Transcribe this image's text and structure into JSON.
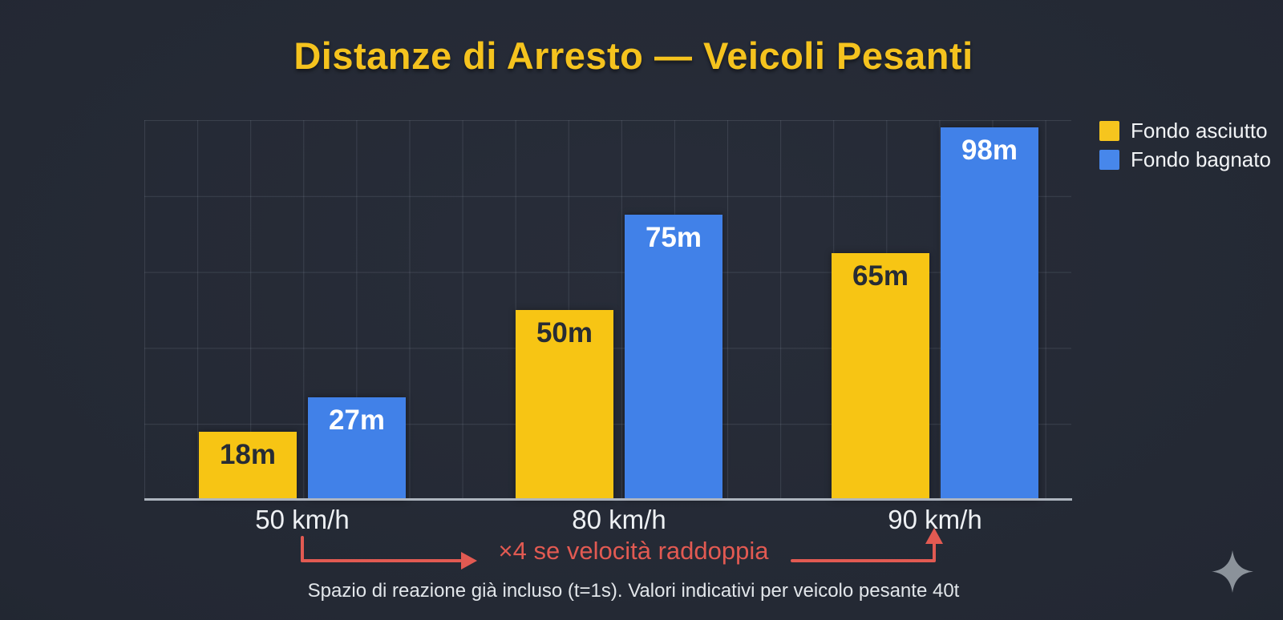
{
  "title": "Distanze di Arresto — Veicoli Pesanti",
  "legend": [
    {
      "label": "Fondo asciutto",
      "color": "#F6C51E",
      "icon": "dry-surface-swatch"
    },
    {
      "label": "Fondo bagnato",
      "color": "#4787EB",
      "icon": "wet-surface-swatch"
    }
  ],
  "chart_data": {
    "type": "bar",
    "title": "Distanze di Arresto — Veicoli Pesanti",
    "categories": [
      "50 km/h",
      "80 km/h",
      "90 km/h"
    ],
    "series": [
      {
        "name": "Fondo asciutto",
        "values": [
          18,
          50,
          65
        ],
        "value_labels": [
          "18m",
          "50m",
          "65m"
        ],
        "color": "#F7C514",
        "value_label_color": "#272c35"
      },
      {
        "name": "Fondo bagnato",
        "values": [
          27,
          75,
          98
        ],
        "value_labels": [
          "27m",
          "75m",
          "98m"
        ],
        "color": "#4181E8",
        "value_label_color": "#ffffff"
      }
    ],
    "unit": "m",
    "xlabel": "",
    "ylabel": "",
    "ylim": [
      0,
      100
    ],
    "grid": true,
    "legend_position": "top-right"
  },
  "annotation": {
    "text": "×4 se velocità raddoppia",
    "color": "#E25A52"
  },
  "footer": {
    "text": "Spazio di reazione già incluso (t=1s). Valori indicativi per veicolo pesante 40t"
  },
  "colors": {
    "background": "#232833",
    "title": "#F5C31E",
    "dry_bar": "#F7C514",
    "wet_bar": "#4181E8",
    "annotation_red": "#E25A52",
    "axis_line": "#aeb5bf"
  },
  "watermark": {
    "icon": "sparkle-icon",
    "color": "#9aa1a9"
  }
}
